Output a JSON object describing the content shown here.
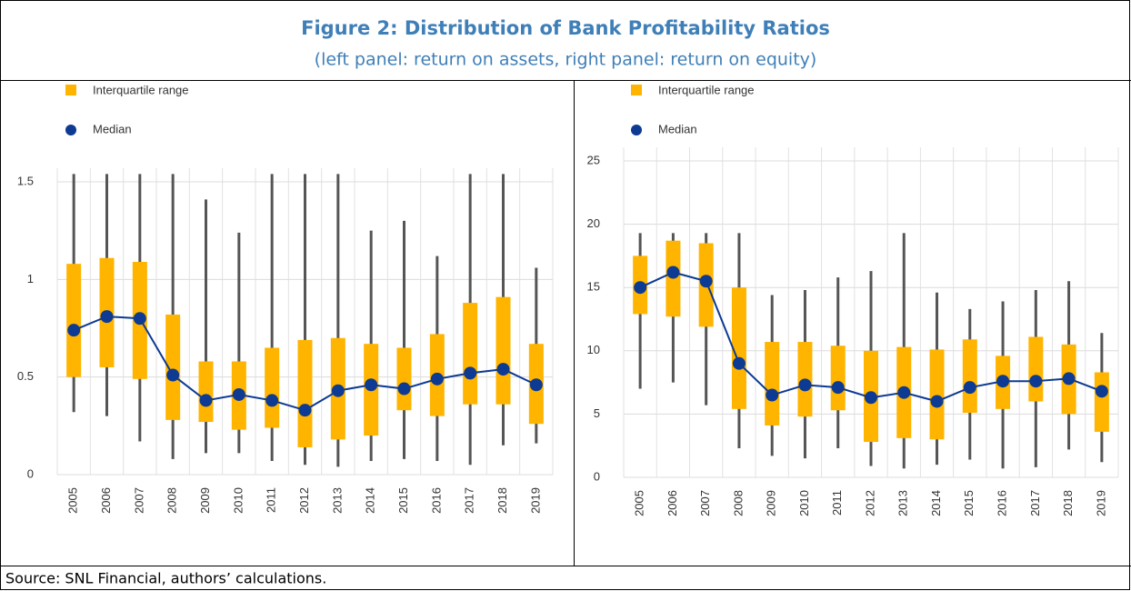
{
  "figure": {
    "title": "Figure 2: Distribution of Bank Profitability Ratios",
    "subtitle": "(left panel: return on assets, right panel: return on equity)",
    "source": "Source: SNL Financial, authors’ calculations."
  },
  "chart_data": [
    {
      "type": "boxplot",
      "categories": [
        "2005",
        "2006",
        "2007",
        "2008",
        "2009",
        "2010",
        "2011",
        "2012",
        "2013",
        "2014",
        "2015",
        "2016",
        "2017",
        "2018",
        "2019"
      ],
      "series": [
        {
          "name": "Interquartile range",
          "color": "#ffb400",
          "q1": [
            0.5,
            0.55,
            0.49,
            0.28,
            0.27,
            0.23,
            0.24,
            0.14,
            0.18,
            0.2,
            0.33,
            0.3,
            0.36,
            0.36,
            0.26
          ],
          "q3": [
            1.08,
            1.11,
            1.09,
            0.82,
            0.58,
            0.58,
            0.65,
            0.69,
            0.7,
            0.67,
            0.65,
            0.72,
            0.88,
            0.91,
            0.67
          ]
        },
        {
          "name": "Median",
          "color": "#0d3a93",
          "values": [
            0.74,
            0.81,
            0.8,
            0.51,
            0.38,
            0.41,
            0.38,
            0.33,
            0.43,
            0.46,
            0.44,
            0.49,
            0.52,
            0.54,
            0.46
          ]
        }
      ],
      "whiskers": {
        "color": "#555555",
        "low": [
          0.32,
          0.3,
          0.17,
          0.08,
          0.11,
          0.11,
          0.07,
          0.05,
          0.04,
          0.07,
          0.08,
          0.07,
          0.05,
          0.15,
          0.16
        ],
        "high": [
          1.54,
          1.54,
          1.54,
          1.54,
          1.41,
          1.24,
          1.54,
          1.54,
          1.54,
          1.25,
          1.3,
          1.12,
          1.54,
          1.54,
          1.06
        ]
      },
      "ylim": [
        0,
        1.5
      ],
      "yticks": [
        0,
        0.5,
        1,
        1.5
      ],
      "grid": true
    },
    {
      "type": "boxplot",
      "categories": [
        "2005",
        "2006",
        "2007",
        "2008",
        "2009",
        "2010",
        "2011",
        "2012",
        "2013",
        "2014",
        "2015",
        "2016",
        "2017",
        "2018",
        "2019"
      ],
      "series": [
        {
          "name": "Interquartile range",
          "color": "#ffb400",
          "q1": [
            12.9,
            12.7,
            11.9,
            5.4,
            4.1,
            4.8,
            5.3,
            2.8,
            3.1,
            3.0,
            5.1,
            5.4,
            6.0,
            5.0,
            3.6
          ],
          "q3": [
            17.5,
            18.7,
            18.5,
            15.0,
            10.7,
            10.7,
            10.4,
            10.0,
            10.3,
            10.1,
            10.9,
            9.6,
            11.1,
            10.5,
            8.3
          ]
        },
        {
          "name": "Median",
          "color": "#0d3a93",
          "values": [
            15.0,
            16.2,
            15.5,
            9.0,
            6.5,
            7.3,
            7.1,
            6.3,
            6.7,
            6.0,
            7.1,
            7.6,
            7.6,
            7.8,
            6.8
          ]
        }
      ],
      "whiskers": {
        "color": "#555555",
        "low": [
          7.0,
          7.5,
          5.7,
          2.3,
          1.7,
          1.5,
          2.3,
          0.9,
          0.7,
          1.0,
          1.4,
          0.7,
          0.8,
          2.2,
          1.2
        ],
        "high": [
          19.3,
          19.3,
          19.3,
          19.3,
          14.4,
          14.8,
          15.8,
          16.3,
          19.3,
          14.6,
          13.3,
          13.9,
          14.8,
          15.5,
          11.4
        ]
      },
      "ylim": [
        0,
        25
      ],
      "yticks": [
        0,
        5,
        10,
        15,
        20,
        25
      ],
      "grid": true
    }
  ]
}
